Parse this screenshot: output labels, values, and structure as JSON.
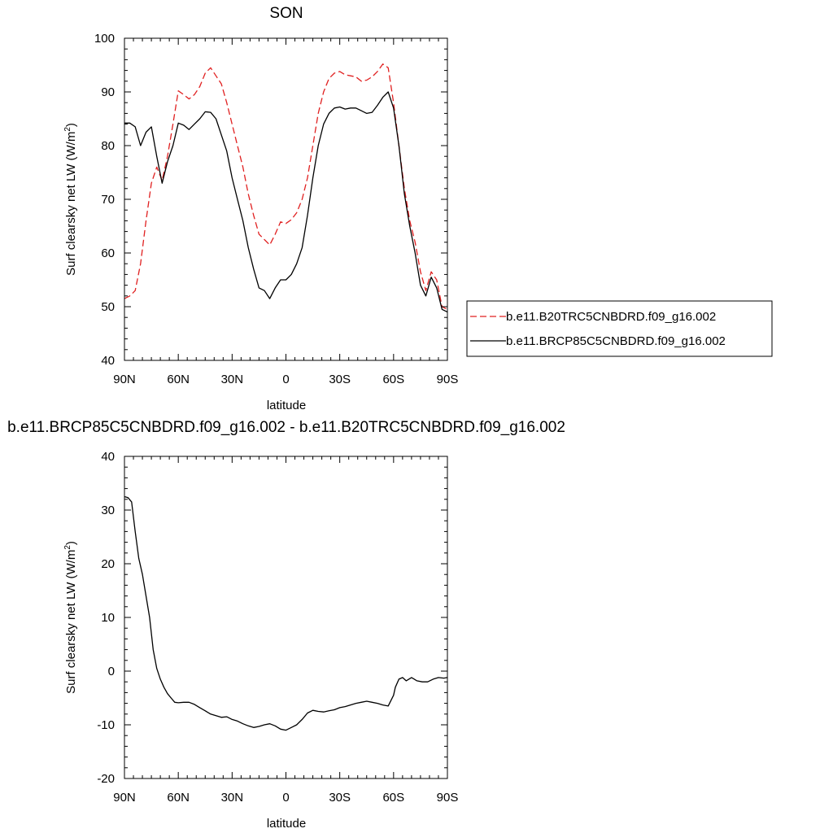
{
  "chart_data": [
    {
      "type": "line",
      "title": "SON",
      "xlabel": "latitude",
      "ylabel": "Surf clearsky net LW (W/m",
      "ylabel_sup": "2",
      "ylabel_close": ")",
      "xlim": [
        90,
        -90
      ],
      "ylim": [
        40,
        100
      ],
      "xticks": [
        90,
        60,
        30,
        0,
        -30,
        -60,
        -90
      ],
      "xtick_labels": [
        "90N",
        "60N",
        "30N",
        "0",
        "30S",
        "60S",
        "90S"
      ],
      "yticks": [
        40,
        50,
        60,
        70,
        80,
        90,
        100
      ],
      "ytick_labels": [
        "40",
        "50",
        "60",
        "70",
        "80",
        "90",
        "100"
      ],
      "legend": "right",
      "grid": false,
      "series": [
        {
          "name": "b.e11.B20TRC5CNBDRD.f09_g16.002",
          "color": "#e02020",
          "dash": "dashed",
          "x": [
            90,
            87,
            84,
            81,
            78,
            75,
            72,
            69,
            66,
            63,
            60,
            57,
            54,
            51,
            48,
            45,
            42,
            39,
            36,
            33,
            30,
            27,
            24,
            21,
            18,
            15,
            12,
            9,
            6,
            3,
            0,
            -3,
            -6,
            -9,
            -12,
            -15,
            -18,
            -21,
            -24,
            -27,
            -30,
            -33,
            -36,
            -39,
            -42,
            -45,
            -48,
            -51,
            -54,
            -57,
            -60,
            -63,
            -66,
            -69,
            -72,
            -75,
            -78,
            -81,
            -84,
            -87,
            -90
          ],
          "y": [
            51.5,
            52.0,
            53.0,
            58.0,
            66.0,
            73.0,
            76.0,
            73.5,
            78.0,
            84.0,
            90.2,
            89.5,
            88.7,
            89.5,
            91.0,
            93.5,
            94.5,
            93.0,
            91.5,
            88.0,
            84.0,
            80.0,
            76.0,
            71.0,
            67.0,
            63.5,
            62.5,
            61.5,
            63.5,
            65.8,
            65.5,
            66.2,
            67.5,
            70.0,
            74.0,
            80.0,
            86.0,
            90.0,
            92.5,
            93.5,
            93.8,
            93.2,
            93.0,
            92.8,
            92.0,
            92.2,
            92.8,
            93.8,
            95.2,
            94.5,
            88.0,
            80.0,
            72.0,
            66.0,
            62.0,
            56.5,
            53.0,
            56.5,
            55.0,
            50.0,
            49.5
          ]
        },
        {
          "name": "b.e11.BRCP85C5CNBDRD.f09_g16.002",
          "color": "#000000",
          "dash": "solid",
          "x": [
            90,
            87,
            84,
            81,
            78,
            75,
            72,
            69,
            66,
            63,
            60,
            57,
            54,
            51,
            48,
            45,
            42,
            39,
            36,
            33,
            30,
            27,
            24,
            21,
            18,
            15,
            12,
            9,
            6,
            3,
            0,
            -3,
            -6,
            -9,
            -12,
            -15,
            -18,
            -21,
            -24,
            -27,
            -30,
            -33,
            -36,
            -39,
            -42,
            -45,
            -48,
            -51,
            -54,
            -57,
            -60,
            -63,
            -66,
            -69,
            -72,
            -75,
            -78,
            -81,
            -84,
            -87,
            -90
          ],
          "y": [
            84.2,
            84.2,
            83.5,
            80.0,
            82.5,
            83.5,
            78.0,
            73.0,
            77.0,
            80.0,
            84.2,
            83.8,
            83.0,
            84.0,
            85.0,
            86.3,
            86.2,
            85.0,
            82.0,
            79.0,
            74.0,
            70.0,
            66.0,
            61.0,
            57.0,
            53.5,
            53.0,
            51.5,
            53.5,
            55.0,
            55.0,
            56.0,
            58.0,
            61.0,
            67.0,
            74.0,
            80.0,
            84.0,
            86.0,
            87.0,
            87.2,
            86.8,
            87.0,
            87.0,
            86.5,
            86.0,
            86.2,
            87.5,
            89.0,
            90.0,
            87.0,
            80.0,
            71.0,
            65.0,
            60.0,
            54.0,
            52.0,
            55.5,
            53.5,
            49.5,
            49.0
          ]
        }
      ]
    },
    {
      "type": "line",
      "title": "b.e11.BRCP85C5CNBDRD.f09_g16.002 - b.e11.B20TRC5CNBDRD.f09_g16.002",
      "xlabel": "latitude",
      "ylabel": "Surf clearsky net LW (W/m",
      "ylabel_sup": "2",
      "ylabel_close": ")",
      "xlim": [
        90,
        -90
      ],
      "ylim": [
        -20,
        40
      ],
      "xticks": [
        90,
        60,
        30,
        0,
        -30,
        -60,
        -90
      ],
      "xtick_labels": [
        "90N",
        "60N",
        "30N",
        "0",
        "30S",
        "60S",
        "90S"
      ],
      "yticks": [
        -20,
        -10,
        0,
        10,
        20,
        30,
        40
      ],
      "ytick_labels": [
        "-20",
        "-10",
        "0",
        "10",
        "20",
        "30",
        "40"
      ],
      "grid": false,
      "series": [
        {
          "color": "#000000",
          "dash": "solid",
          "x": [
            90,
            88,
            86,
            84,
            82,
            80,
            78,
            76,
            74,
            72,
            70,
            68,
            66,
            64,
            62,
            60,
            57,
            54,
            51,
            48,
            45,
            42,
            39,
            36,
            33,
            30,
            27,
            24,
            21,
            18,
            15,
            12,
            9,
            6,
            3,
            0,
            -3,
            -6,
            -9,
            -12,
            -15,
            -18,
            -21,
            -24,
            -27,
            -30,
            -33,
            -36,
            -39,
            -42,
            -45,
            -48,
            -51,
            -54,
            -57,
            -60,
            -61,
            -63,
            -65,
            -67,
            -70,
            -73,
            -76,
            -79,
            -82,
            -85,
            -88,
            -90
          ],
          "y": [
            32.5,
            32.3,
            31.5,
            26.0,
            21.0,
            18.0,
            14.0,
            10.0,
            4.0,
            0.5,
            -1.5,
            -3.0,
            -4.2,
            -5.0,
            -5.8,
            -5.9,
            -5.8,
            -5.8,
            -6.2,
            -6.8,
            -7.4,
            -8.0,
            -8.3,
            -8.6,
            -8.5,
            -9.0,
            -9.3,
            -9.8,
            -10.2,
            -10.5,
            -10.3,
            -10.0,
            -9.8,
            -10.2,
            -10.8,
            -11.0,
            -10.5,
            -10.0,
            -9.0,
            -7.8,
            -7.3,
            -7.5,
            -7.6,
            -7.4,
            -7.2,
            -6.8,
            -6.6,
            -6.3,
            -6.0,
            -5.8,
            -5.6,
            -5.8,
            -6.0,
            -6.3,
            -6.5,
            -4.5,
            -3.0,
            -1.5,
            -1.2,
            -1.8,
            -1.2,
            -1.8,
            -2.0,
            -2.0,
            -1.5,
            -1.2,
            -1.3,
            -1.2
          ]
        }
      ]
    }
  ]
}
